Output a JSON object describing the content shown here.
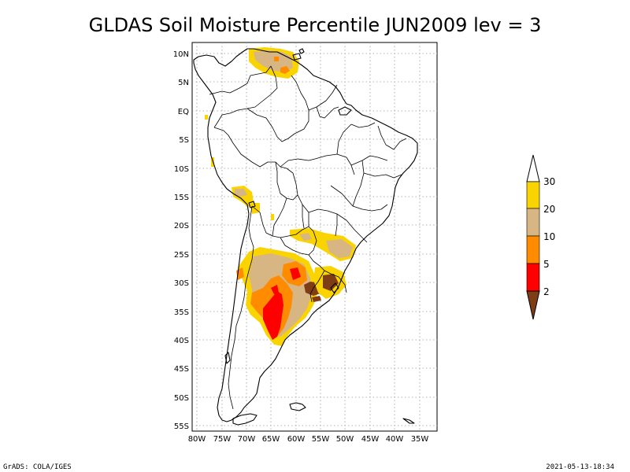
{
  "title": "GLDAS Soil Moisture Percentile JUN2009 lev = 3",
  "footer": {
    "left": "GrADS: COLA/IGES",
    "right": "2021-05-13-18:34"
  },
  "map": {
    "lat_labels": [
      "10N",
      "5N",
      "EQ",
      "5S",
      "10S",
      "15S",
      "20S",
      "25S",
      "30S",
      "35S",
      "40S",
      "45S",
      "50S",
      "55S"
    ],
    "lon_labels": [
      "80W",
      "75W",
      "70W",
      "65W",
      "60W",
      "55W",
      "50W",
      "45W",
      "40W",
      "35W"
    ],
    "lat_range": [
      -56,
      12
    ],
    "lon_range": [
      -81,
      -33
    ]
  },
  "legend": {
    "levels": [
      {
        "label": "30",
        "color": "#f9d400"
      },
      {
        "label": "20",
        "color": "#d8b684"
      },
      {
        "label": "10",
        "color": "#ff8b00"
      },
      {
        "label": "5",
        "color": "#ff0000"
      },
      {
        "label": "2",
        "color": "#7e3d14"
      }
    ],
    "top_color": "#ffffff",
    "bottom_color": "#7e3d14"
  },
  "colors": {
    "p2": "#7e3d14",
    "p5": "#ff0000",
    "p10": "#ff8b00",
    "p20": "#d8b684",
    "p30": "#f9d400"
  }
}
